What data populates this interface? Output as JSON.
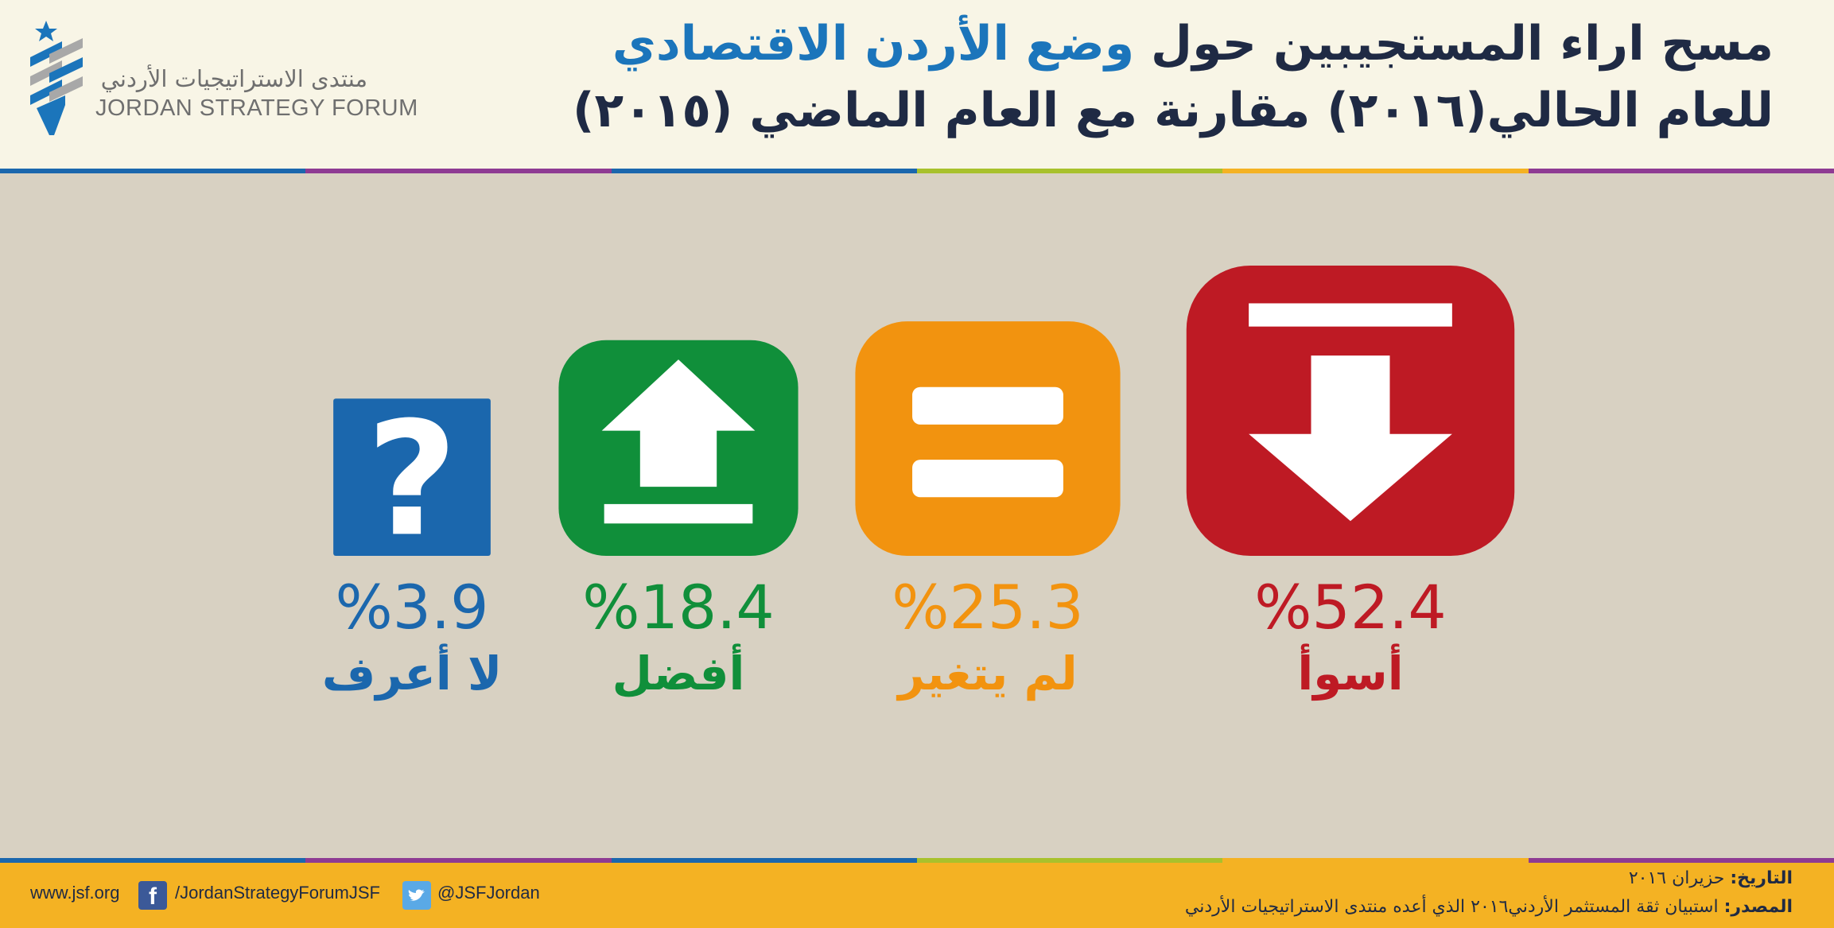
{
  "header": {
    "logo_ar": "منتدى الاستراتيجيات الأردني",
    "logo_en": "JORDAN STRATEGY FORUM",
    "title_line1_part1": "مسح اراء المستجيبين حول",
    "title_line1_accent": "وضع الأردن الاقتصادي",
    "title_line2": "للعام الحالي(٢٠١٦) مقارنة مع العام الماضي (٢٠١٥)"
  },
  "colors": {
    "worse": "#be1a24",
    "unchanged": "#f2930f",
    "better": "#108f3a",
    "dont_know": "#1b67ad",
    "title_dark": "#1f2a44",
    "title_accent": "#1b75bb",
    "panel_bg": "#d8d1c2",
    "footer_bg": "#f4b223",
    "stripes": [
      "#1b67ad",
      "#8e3b93",
      "#1b67ad",
      "#a8c12c",
      "#f4b223",
      "#8e3b93"
    ]
  },
  "chart_data": {
    "type": "bar",
    "categories": [
      "أسوأ",
      "لم يتغير",
      "أفضل",
      "لا أعرف"
    ],
    "values": [
      52.4,
      25.3,
      18.4,
      3.9
    ],
    "value_labels": [
      "%52.4",
      "%25.3",
      "%18.4",
      "%3.9"
    ],
    "icons": [
      "down-arrow-icon",
      "equals-icon",
      "up-arrow-icon",
      "question-icon"
    ],
    "title": "مسح اراء المستجيبين حول وضع الأردن الاقتصادي للعام الحالي(٢٠١٦) مقارنة مع العام الماضي (٢٠١٥)",
    "xlabel": "",
    "ylabel": ""
  },
  "footer": {
    "website": "www.jsf.org",
    "facebook": "/JordanStrategyForumJSF",
    "twitter": "@JSFJordan",
    "date_label": "التاريخ:",
    "date_value": "حزيران ٢٠١٦",
    "source_label": "المصدر:",
    "source_value": "استبيان ثقة المستثمر الأردني٢٠١٦ الذي أعده منتدى الاستراتيجيات الأردني"
  }
}
